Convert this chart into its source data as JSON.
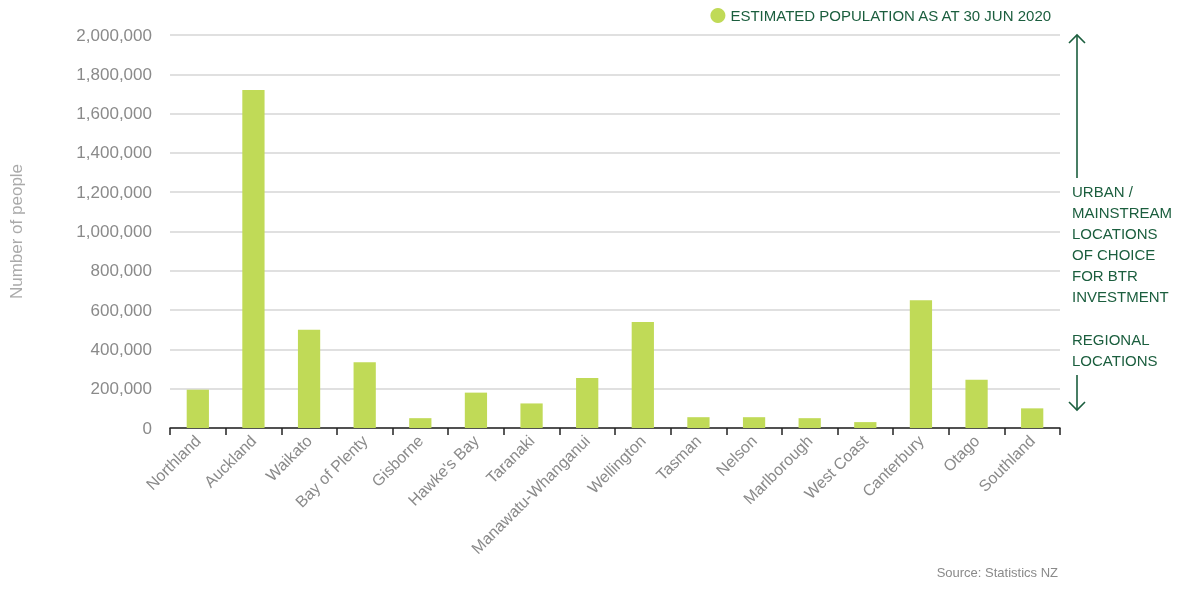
{
  "chart_data": {
    "type": "bar",
    "categories": [
      "Northland",
      "Auckland",
      "Waikato",
      "Bay of Plenty",
      "Gisborne",
      "Hawke's Bay",
      "Taranaki",
      "Manawatu-Whanganui",
      "Wellington",
      "Tasman",
      "Nelson",
      "Marlborough",
      "West Coast",
      "Canterbury",
      "Otago",
      "Southland"
    ],
    "series": [
      {
        "name": "ESTIMATED POPULATION AS AT 30 JUN 2020",
        "color": "#c0da57",
        "values": [
          195000,
          1720000,
          500000,
          335000,
          50000,
          180000,
          125000,
          255000,
          540000,
          55000,
          55000,
          50000,
          30000,
          650000,
          245000,
          100000
        ]
      }
    ],
    "ylabel": "Number of people",
    "ylim": [
      0,
      2000000
    ],
    "yticks": [
      {
        "value": 0,
        "label": "0"
      },
      {
        "value": 200000,
        "label": "200,000"
      },
      {
        "value": 400000,
        "label": "400,000"
      },
      {
        "value": 600000,
        "label": "600,000"
      },
      {
        "value": 800000,
        "label": "800,000"
      },
      {
        "value": 1000000,
        "label": "1,000,000"
      },
      {
        "value": 1200000,
        "label": "1,200,000"
      },
      {
        "value": 1400000,
        "label": "1,400,000"
      },
      {
        "value": 1600000,
        "label": "1,600,000"
      },
      {
        "value": 1800000,
        "label": "1,800,000"
      },
      {
        "value": 2000000,
        "label": "2,000,000"
      }
    ],
    "grid": "y",
    "legend": "top right",
    "annotations": [
      "URBAN / MAINSTREAM LOCATIONS OF CHOICE FOR BTR INVESTMENT",
      "REGIONAL LOCATIONS",
      "Source: Statistics NZ"
    ]
  }
}
